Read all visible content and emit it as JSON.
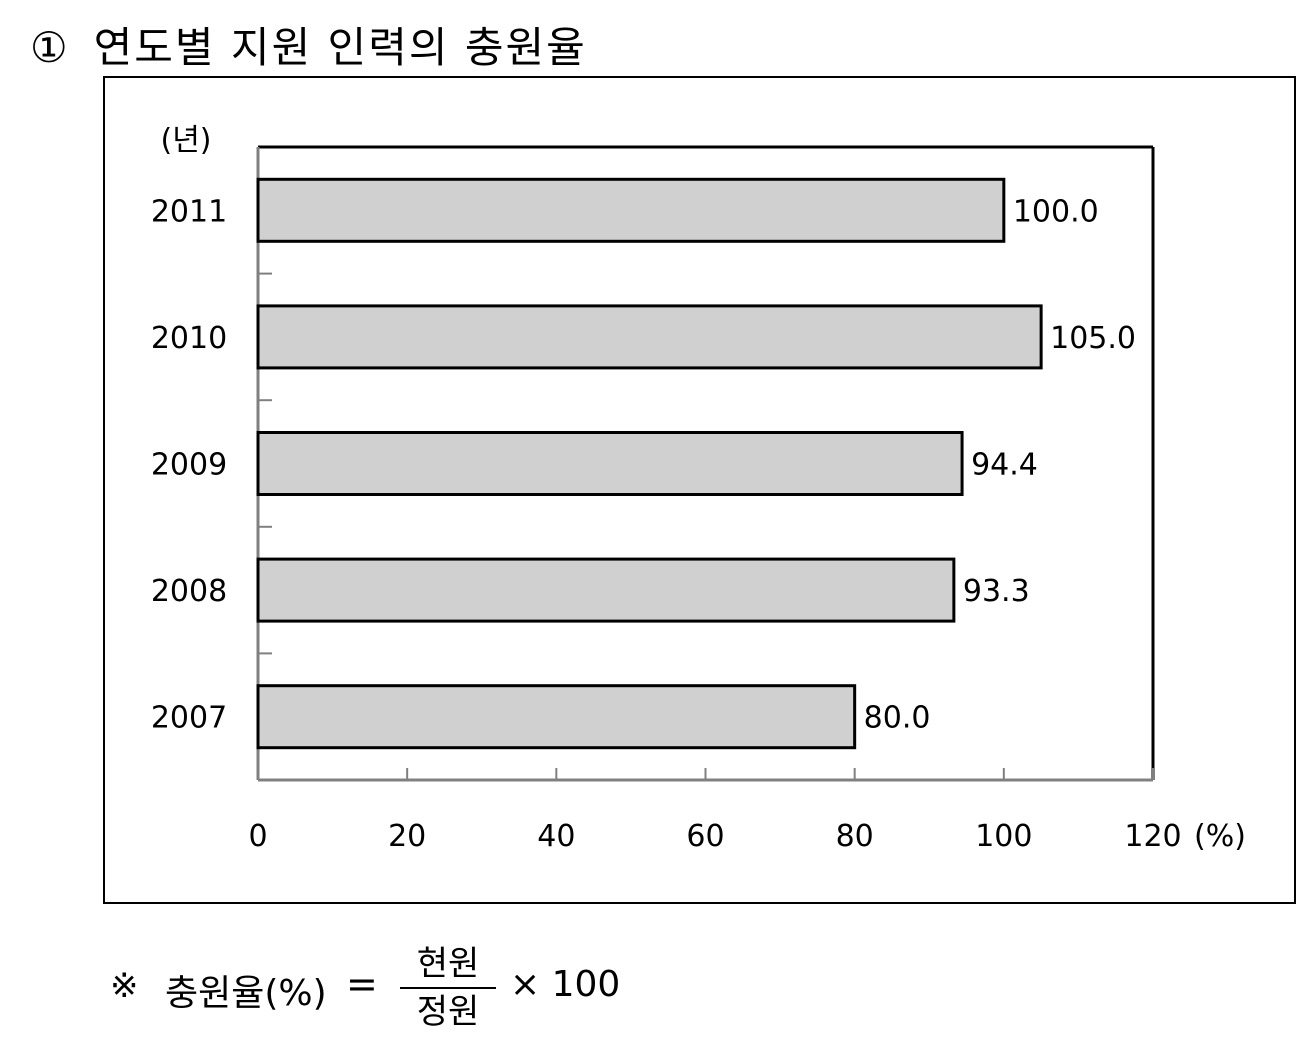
{
  "heading": {
    "number": "①",
    "text": "연도별 지원 인력의 충원율"
  },
  "chart_data": {
    "type": "bar",
    "orientation": "horizontal",
    "title": "연도별 지원 인력의 충원율",
    "y_axis_unit": "(년)",
    "x_axis_unit": "(%)",
    "categories": [
      "2011",
      "2010",
      "2009",
      "2008",
      "2007"
    ],
    "values": [
      100.0,
      105.0,
      94.4,
      93.3,
      80.0
    ],
    "value_labels": [
      "100.0",
      "105.0",
      "94.4",
      "93.3",
      "80.0"
    ],
    "xlim": [
      0,
      120
    ],
    "x_ticks": [
      "0",
      "20",
      "40",
      "60",
      "80",
      "100",
      "120"
    ],
    "bar_color": "#d0d0d0",
    "grid": false,
    "legend": "none"
  },
  "formula": {
    "mark": "※",
    "lhs": "충원율(%)",
    "equals": "=",
    "numerator": "현원",
    "denominator": "정원",
    "multiplier": "× 100"
  }
}
